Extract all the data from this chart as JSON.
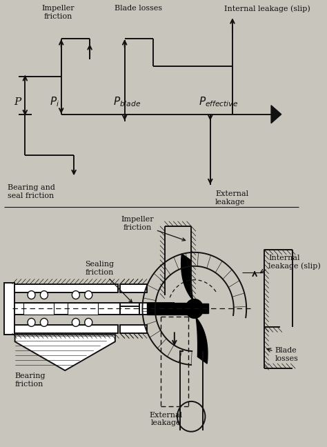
{
  "bg_color": "#c8c5bc",
  "line_color": "#111111",
  "text_color": "#111111",
  "fig_width": 4.74,
  "fig_height": 6.48,
  "dpi": 100,
  "top": {
    "impeller_friction": "Impeller\nfriction",
    "blade_losses": "Blade losses",
    "internal_leakage": "Internal leakage (slip)",
    "bearing_seal": "Bearing and\nseal friction",
    "external_leakage": "External\nleakage"
  },
  "bottom": {
    "impeller_friction": "Impeller\nfriction",
    "sealing_friction": "Sealing\nfriction",
    "internal_leakage": "Internal\nleakage (slip)",
    "bearing_friction": "Bearing\nfriction",
    "external_leakage": "External\nleakage",
    "blade_losses": "Blade\nlosses"
  }
}
